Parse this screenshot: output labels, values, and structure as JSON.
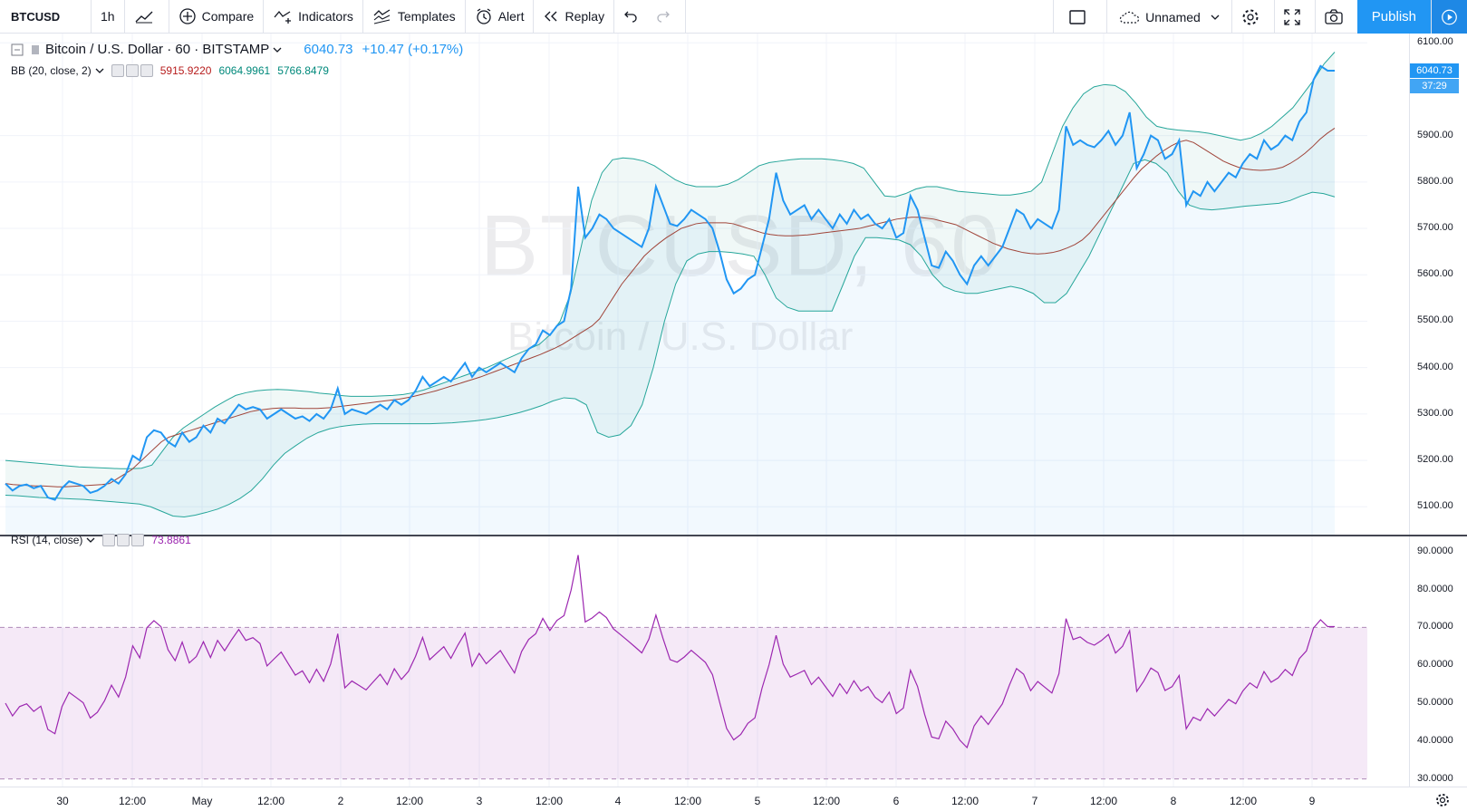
{
  "toolbar": {
    "symbol": "BTCUSD",
    "interval": "1h",
    "compare": "Compare",
    "indicators": "Indicators",
    "templates": "Templates",
    "alert": "Alert",
    "replay": "Replay",
    "layout_name": "Unnamed",
    "publish": "Publish"
  },
  "legend": {
    "title": "Bitcoin / U.S. Dollar · 60 · BITSTAMP",
    "price": "6040.73",
    "change": "+10.47 (+0.17%)"
  },
  "bb": {
    "label": "BB (20, close, 2)",
    "basis": "5915.9220",
    "upper": "6064.9961",
    "lower": "5766.8479",
    "colors": {
      "basis": "#b71c1c",
      "upper": "#00897b",
      "lower": "#00897b"
    }
  },
  "rsi": {
    "label": "RSI (14, close)",
    "value": "73.8861",
    "color": "#9c27b0"
  },
  "watermark": {
    "symbol": "BTCUSD, 60",
    "name": "Bitcoin / U.S. Dollar"
  },
  "price_axis": {
    "labels": [
      "6100.00",
      "5900.00",
      "5800.00",
      "5700.00",
      "5600.00",
      "5500.00",
      "5400.00",
      "5300.00",
      "5200.00",
      "5100.00"
    ],
    "last_price": "6040.73",
    "countdown": "37:29"
  },
  "rsi_axis": {
    "labels": [
      "90.0000",
      "80.0000",
      "70.0000",
      "60.0000",
      "50.0000",
      "40.0000",
      "30.0000"
    ]
  },
  "time_axis": {
    "labels": [
      "30",
      "12:00",
      "May",
      "12:00",
      "2",
      "12:00",
      "3",
      "12:00",
      "4",
      "12:00",
      "5",
      "12:00",
      "6",
      "12:00",
      "7",
      "12:00",
      "8",
      "12:00",
      "9"
    ]
  },
  "chart_data": {
    "type": "line",
    "price_range": [
      5040,
      6120
    ],
    "rsi_range": [
      28,
      94
    ],
    "rsi_levels": [
      70,
      30
    ],
    "price": [
      5150,
      5135,
      5145,
      5148,
      5140,
      5145,
      5120,
      5115,
      5140,
      5155,
      5150,
      5145,
      5130,
      5135,
      5145,
      5160,
      5150,
      5170,
      5210,
      5200,
      5250,
      5265,
      5260,
      5240,
      5230,
      5260,
      5240,
      5250,
      5275,
      5260,
      5290,
      5280,
      5300,
      5320,
      5310,
      5315,
      5310,
      5290,
      5300,
      5310,
      5300,
      5290,
      5295,
      5285,
      5300,
      5290,
      5310,
      5355,
      5300,
      5310,
      5305,
      5300,
      5310,
      5320,
      5310,
      5330,
      5320,
      5330,
      5350,
      5380,
      5360,
      5370,
      5380,
      5370,
      5390,
      5410,
      5380,
      5400,
      5390,
      5400,
      5410,
      5400,
      5390,
      5420,
      5440,
      5450,
      5480,
      5470,
      5490,
      5500,
      5570,
      5790,
      5680,
      5700,
      5730,
      5720,
      5700,
      5690,
      5680,
      5670,
      5660,
      5700,
      5790,
      5750,
      5710,
      5705,
      5720,
      5740,
      5730,
      5720,
      5700,
      5650,
      5590,
      5560,
      5570,
      5590,
      5600,
      5660,
      5720,
      5820,
      5760,
      5730,
      5740,
      5750,
      5720,
      5740,
      5720,
      5700,
      5730,
      5710,
      5740,
      5720,
      5730,
      5710,
      5700,
      5720,
      5680,
      5690,
      5770,
      5740,
      5680,
      5620,
      5615,
      5650,
      5630,
      5600,
      5580,
      5620,
      5640,
      5620,
      5640,
      5660,
      5700,
      5740,
      5730,
      5700,
      5720,
      5710,
      5700,
      5740,
      5920,
      5880,
      5890,
      5880,
      5875,
      5890,
      5910,
      5880,
      5900,
      5950,
      5830,
      5860,
      5900,
      5890,
      5850,
      5860,
      5890,
      5750,
      5780,
      5770,
      5800,
      5780,
      5800,
      5820,
      5810,
      5840,
      5860,
      5850,
      5890,
      5870,
      5880,
      5900,
      5890,
      5930,
      5950,
      6020,
      6050,
      6040,
      6040
    ],
    "bb_basis": [
      5150,
      5148,
      5147,
      5146,
      5145,
      5145,
      5144,
      5143,
      5143,
      5144,
      5145,
      5146,
      5147,
      5148,
      5150,
      5160,
      5170,
      5180,
      5195,
      5210,
      5225,
      5240,
      5250,
      5255,
      5260,
      5265,
      5270,
      5275,
      5280,
      5285,
      5290,
      5295,
      5300,
      5305,
      5308,
      5310,
      5312,
      5313,
      5313,
      5313,
      5312,
      5312,
      5312,
      5313,
      5314,
      5316,
      5318,
      5320,
      5322,
      5324,
      5326,
      5328,
      5330,
      5332,
      5335,
      5338,
      5342,
      5346,
      5350,
      5355,
      5360,
      5365,
      5370,
      5375,
      5380,
      5386,
      5392,
      5398,
      5404,
      5410,
      5416,
      5422,
      5428,
      5435,
      5442,
      5450,
      5460,
      5470,
      5480,
      5490,
      5505,
      5530,
      5555,
      5580,
      5600,
      5620,
      5640,
      5655,
      5668,
      5680,
      5690,
      5700,
      5705,
      5710,
      5712,
      5712,
      5712,
      5712,
      5710,
      5705,
      5700,
      5695,
      5690,
      5687,
      5685,
      5684,
      5684,
      5685,
      5686,
      5688,
      5690,
      5692,
      5694,
      5696,
      5698,
      5700,
      5704,
      5708,
      5712,
      5716,
      5720,
      5722,
      5724,
      5724,
      5722,
      5720,
      5716,
      5712,
      5708,
      5700,
      5692,
      5684,
      5676,
      5668,
      5662,
      5656,
      5652,
      5648,
      5646,
      5645,
      5646,
      5648,
      5652,
      5658,
      5665,
      5675,
      5690,
      5710,
      5730,
      5750,
      5770,
      5790,
      5810,
      5828,
      5842,
      5856,
      5868,
      5878,
      5886,
      5890,
      5885,
      5875,
      5865,
      5855,
      5845,
      5838,
      5832,
      5828,
      5826,
      5825,
      5826,
      5828,
      5832,
      5840,
      5850,
      5862,
      5876,
      5892,
      5905,
      5916
    ],
    "bb_upper": [
      5200,
      5198,
      5196,
      5194,
      5192,
      5190,
      5188,
      5186,
      5185,
      5184,
      5183,
      5182,
      5182,
      5183,
      5190,
      5220,
      5250,
      5270,
      5285,
      5300,
      5315,
      5328,
      5340,
      5346,
      5350,
      5352,
      5353,
      5352,
      5350,
      5348,
      5345,
      5343,
      5340,
      5338,
      5338,
      5338,
      5339,
      5340,
      5342,
      5346,
      5352,
      5360,
      5368,
      5376,
      5384,
      5392,
      5400,
      5410,
      5420,
      5430,
      5440,
      5450,
      5470,
      5500,
      5560,
      5660,
      5760,
      5820,
      5848,
      5852,
      5850,
      5845,
      5835,
      5820,
      5805,
      5795,
      5790,
      5790,
      5790,
      5795,
      5805,
      5820,
      5835,
      5842,
      5845,
      5848,
      5850,
      5850,
      5850,
      5848,
      5845,
      5840,
      5830,
      5800,
      5770,
      5768,
      5775,
      5785,
      5790,
      5790,
      5785,
      5780,
      5778,
      5776,
      5774,
      5772,
      5772,
      5775,
      5780,
      5800,
      5860,
      5920,
      5960,
      5990,
      6005,
      6010,
      6008,
      5995,
      5970,
      5940,
      5920,
      5915,
      5912,
      5910,
      5908,
      5905,
      5900,
      5895,
      5890,
      5895,
      5905,
      5920,
      5940,
      5960,
      5990,
      6020,
      6055,
      6080
    ],
    "bb_lower": [
      5125,
      5124,
      5122,
      5120,
      5119,
      5118,
      5117,
      5116,
      5114,
      5112,
      5110,
      5108,
      5106,
      5100,
      5090,
      5080,
      5078,
      5082,
      5088,
      5095,
      5105,
      5118,
      5135,
      5160,
      5190,
      5215,
      5232,
      5248,
      5260,
      5268,
      5273,
      5276,
      5278,
      5279,
      5279,
      5279,
      5279,
      5279,
      5279,
      5280,
      5281,
      5283,
      5285,
      5288,
      5292,
      5297,
      5303,
      5310,
      5318,
      5328,
      5335,
      5333,
      5320,
      5260,
      5250,
      5255,
      5275,
      5320,
      5400,
      5500,
      5580,
      5630,
      5645,
      5650,
      5650,
      5648,
      5645,
      5640,
      5600,
      5550,
      5530,
      5522,
      5522,
      5522,
      5522,
      5580,
      5640,
      5680,
      5680,
      5678,
      5675,
      5665,
      5640,
      5600,
      5575,
      5565,
      5560,
      5560,
      5565,
      5570,
      5575,
      5570,
      5560,
      5540,
      5540,
      5560,
      5600,
      5640,
      5690,
      5740,
      5790,
      5840,
      5848,
      5840,
      5820,
      5780,
      5750,
      5742,
      5740,
      5742,
      5745,
      5748,
      5750,
      5752,
      5754,
      5760,
      5770,
      5778,
      5775,
      5768
    ]
  }
}
